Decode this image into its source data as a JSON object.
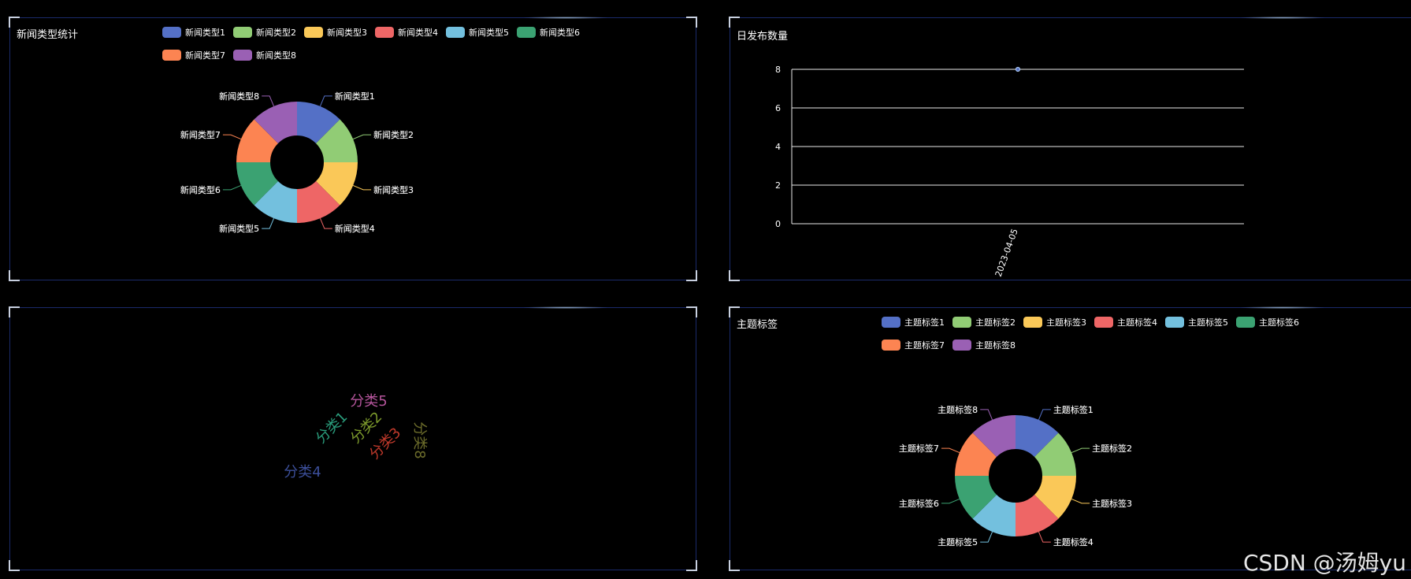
{
  "palette": [
    "#5470c6",
    "#91cc75",
    "#fac858",
    "#ee6666",
    "#73c0de",
    "#3ba272",
    "#fc8452",
    "#9a60b4"
  ],
  "news_type": {
    "title": "新闻类型统计",
    "legend": [
      "新闻类型1",
      "新闻类型2",
      "新闻类型3",
      "新闻类型4",
      "新闻类型5",
      "新闻类型6",
      "新闻类型7",
      "新闻类型8"
    ]
  },
  "daily": {
    "title": "日发布数量"
  },
  "tag": {
    "title": "主题标签",
    "legend": [
      "主题标签1",
      "主题标签2",
      "主题标签3",
      "主题标签4",
      "主题标签5",
      "主题标签6",
      "主题标签7",
      "主题标签8"
    ]
  },
  "wordcloud": {
    "words": [
      {
        "text": "分类5",
        "color": "#b5559c"
      },
      {
        "text": "分类1",
        "color": "#2a9d7c"
      },
      {
        "text": "分类2",
        "color": "#7d9b2c"
      },
      {
        "text": "分类3",
        "color": "#c0392b"
      },
      {
        "text": "分类8",
        "color": "#6b6b2a"
      },
      {
        "text": "分类4",
        "color": "#3c4f9a"
      }
    ]
  },
  "watermark": "CSDN @汤姆yu",
  "chart_data": [
    {
      "type": "pie",
      "title": "新闻类型统计",
      "donut": true,
      "categories": [
        "新闻类型1",
        "新闻类型2",
        "新闻类型3",
        "新闻类型4",
        "新闻类型5",
        "新闻类型6",
        "新闻类型7",
        "新闻类型8"
      ],
      "values": [
        1,
        1,
        1,
        1,
        1,
        1,
        1,
        1
      ],
      "legend_position": "top"
    },
    {
      "type": "line",
      "title": "日发布数量",
      "x": [
        "2023-04-05"
      ],
      "series": [
        {
          "values": [
            8
          ]
        }
      ],
      "yticks": [
        0,
        2,
        4,
        6,
        8
      ],
      "ylim": [
        0,
        8
      ],
      "grid": true
    },
    {
      "type": "pie",
      "title": "主题标签",
      "donut": true,
      "categories": [
        "主题标签1",
        "主题标签2",
        "主题标签3",
        "主题标签4",
        "主题标签5",
        "主题标签6",
        "主题标签7",
        "主题标签8"
      ],
      "values": [
        1,
        1,
        1,
        1,
        1,
        1,
        1,
        1
      ],
      "legend_position": "top"
    }
  ]
}
